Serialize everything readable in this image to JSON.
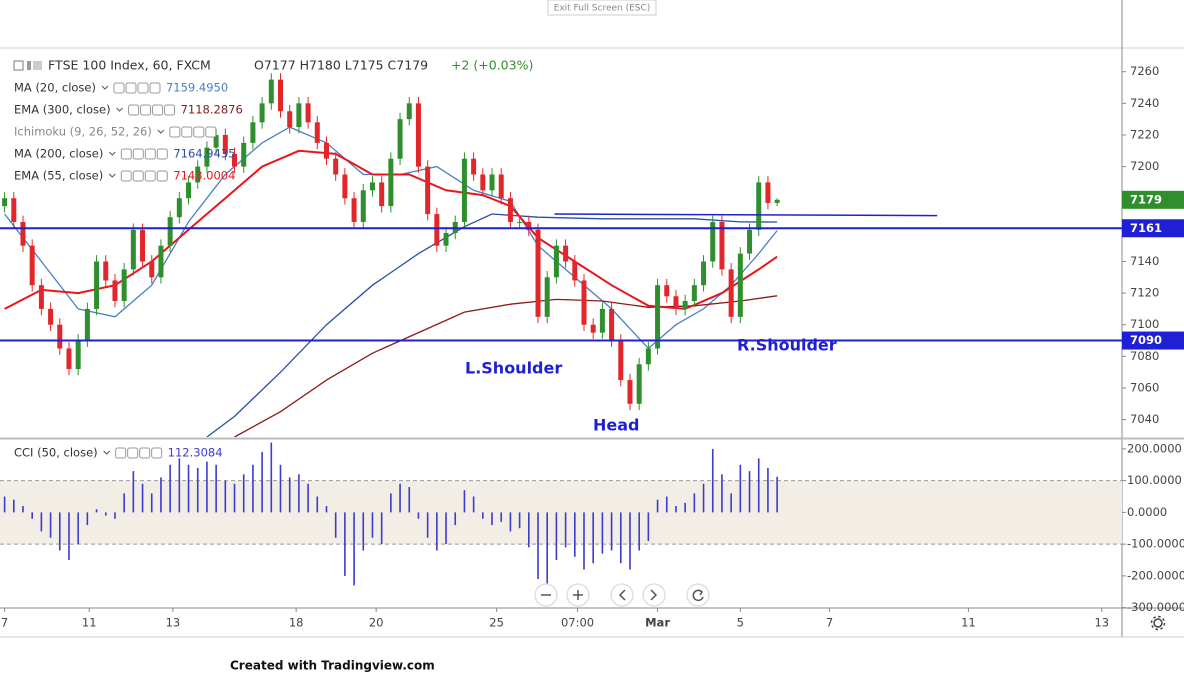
{
  "toolbar_button": "Exit Full Screen (ESC)",
  "footer": "Created with Tradingview.com",
  "chart_data": [
    {
      "type": "candlestick",
      "title": "FTSE 100 Index, 60, FXCM",
      "ohlc_text": "O7177 H7180 L7175 C7179",
      "change_text": "+2 (+0.03%)",
      "xlim": [
        -0.5,
        121.5
      ],
      "xticks": [
        {
          "value": 0,
          "label": "7"
        },
        {
          "value": 9.2,
          "label": "11"
        },
        {
          "value": 18.3,
          "label": "13"
        },
        {
          "value": 31.7,
          "label": "18"
        },
        {
          "value": 40.4,
          "label": "20"
        },
        {
          "value": 53.5,
          "label": "25"
        },
        {
          "value": 62.3,
          "label": "07:00"
        },
        {
          "value": 71.0,
          "label": "Mar"
        },
        {
          "value": 80.0,
          "label": "5"
        },
        {
          "value": 89.7,
          "label": "7"
        },
        {
          "value": 104.8,
          "label": "11"
        },
        {
          "value": 119.3,
          "label": "13"
        }
      ],
      "ylim": [
        7029,
        7275
      ],
      "yticks": [
        7040,
        7060,
        7080,
        7100,
        7120,
        7140,
        7160,
        7180,
        7200,
        7220,
        7240,
        7260
      ],
      "open": [
        7175,
        7180,
        7165,
        7150,
        7125,
        7110,
        7100,
        7085,
        7072,
        7090,
        7110,
        7140,
        7128,
        7115,
        7135,
        7160,
        7140,
        7130,
        7150,
        7168,
        7180,
        7190,
        7200,
        7212,
        7220,
        7208,
        7200,
        7215,
        7228,
        7240,
        7255,
        7235,
        7225,
        7240,
        7228,
        7215,
        7205,
        7195,
        7180,
        7165,
        7185,
        7190,
        7175,
        7205,
        7230,
        7240,
        7200,
        7170,
        7150,
        7158,
        7165,
        7205,
        7195,
        7185,
        7195,
        7180,
        7165,
        7165,
        7160,
        7105,
        7130,
        7150,
        7140,
        7128,
        7100,
        7095,
        7110,
        7090,
        7065,
        7050,
        7075,
        7085,
        7125,
        7118,
        7110,
        7115,
        7125,
        7140,
        7165,
        7135,
        7105,
        7145,
        7160,
        7190,
        7177
      ],
      "high": [
        7184,
        7184,
        7169,
        7154,
        7129,
        7114,
        7104,
        7089,
        7094,
        7114,
        7144,
        7144,
        7132,
        7139,
        7164,
        7164,
        7144,
        7154,
        7172,
        7184,
        7194,
        7204,
        7216,
        7224,
        7224,
        7212,
        7219,
        7232,
        7244,
        7259,
        7259,
        7239,
        7244,
        7244,
        7232,
        7219,
        7209,
        7199,
        7184,
        7189,
        7194,
        7194,
        7209,
        7234,
        7244,
        7244,
        7204,
        7174,
        7162,
        7169,
        7209,
        7209,
        7199,
        7199,
        7199,
        7184,
        7169,
        7169,
        7164,
        7134,
        7154,
        7154,
        7144,
        7132,
        7104,
        7114,
        7114,
        7094,
        7069,
        7079,
        7089,
        7129,
        7129,
        7122,
        7119,
        7129,
        7144,
        7169,
        7169,
        7139,
        7149,
        7164,
        7194,
        7194,
        7180
      ],
      "low": [
        7171,
        7161,
        7146,
        7121,
        7106,
        7096,
        7081,
        7068,
        7068,
        7086,
        7106,
        7124,
        7111,
        7111,
        7131,
        7136,
        7126,
        7126,
        7146,
        7164,
        7176,
        7186,
        7196,
        7208,
        7204,
        7196,
        7196,
        7211,
        7224,
        7236,
        7231,
        7221,
        7221,
        7224,
        7211,
        7201,
        7191,
        7176,
        7161,
        7161,
        7181,
        7171,
        7171,
        7201,
        7226,
        7196,
        7166,
        7146,
        7146,
        7154,
        7161,
        7191,
        7181,
        7181,
        7176,
        7161,
        7161,
        7156,
        7101,
        7101,
        7126,
        7136,
        7124,
        7096,
        7091,
        7091,
        7086,
        7061,
        7046,
        7046,
        7071,
        7081,
        7114,
        7106,
        7106,
        7111,
        7121,
        7136,
        7131,
        7101,
        7101,
        7141,
        7156,
        7173,
        7175
      ],
      "close": [
        7180,
        7165,
        7150,
        7125,
        7110,
        7100,
        7085,
        7072,
        7090,
        7110,
        7140,
        7128,
        7115,
        7135,
        7160,
        7140,
        7130,
        7150,
        7168,
        7180,
        7190,
        7200,
        7212,
        7220,
        7208,
        7200,
        7215,
        7228,
        7240,
        7255,
        7235,
        7225,
        7240,
        7228,
        7215,
        7205,
        7195,
        7180,
        7165,
        7185,
        7190,
        7175,
        7205,
        7230,
        7240,
        7200,
        7170,
        7150,
        7158,
        7165,
        7205,
        7195,
        7185,
        7195,
        7180,
        7165,
        7165,
        7160,
        7105,
        7130,
        7150,
        7140,
        7128,
        7100,
        7095,
        7110,
        7090,
        7065,
        7050,
        7075,
        7085,
        7125,
        7118,
        7110,
        7115,
        7125,
        7140,
        7165,
        7135,
        7105,
        7145,
        7160,
        7190,
        7177,
        7179
      ],
      "up_color": "#2f8f2f",
      "down_color": "#e3262a",
      "series": [
        {
          "name": "MA (20, close)",
          "color": "#4a7fc1",
          "legend_label": "7159.4950",
          "x": [
            0,
            4,
            8,
            12,
            16,
            20,
            24,
            28,
            31,
            35,
            39,
            43,
            47,
            51,
            55,
            58,
            62,
            66,
            70,
            73,
            76,
            79,
            82,
            84
          ],
          "values": [
            7170,
            7140,
            7110,
            7105,
            7125,
            7165,
            7195,
            7215,
            7225,
            7215,
            7195,
            7195,
            7200,
            7185,
            7178,
            7150,
            7130,
            7110,
            7085,
            7100,
            7110,
            7125,
            7145,
            7159.495
          ]
        },
        {
          "name": "EMA (300, close)",
          "color": "#8b1a1a",
          "legend_label": "7118.2876",
          "x": [
            25,
            30,
            35,
            40,
            45,
            50,
            55,
            60,
            65,
            70,
            75,
            80,
            84
          ],
          "values": [
            7029,
            7045,
            7065,
            7082,
            7095,
            7108,
            7113,
            7116,
            7115,
            7111,
            7112,
            7115,
            7118.2876
          ]
        },
        {
          "name": "MA (200, close)",
          "color": "#2a4fa8",
          "legend_label": "7164.9435",
          "x": [
            22,
            25,
            30,
            35,
            40,
            45,
            50,
            53,
            58,
            65,
            75,
            80,
            84
          ],
          "values": [
            7029,
            7042,
            7070,
            7100,
            7125,
            7145,
            7162,
            7170,
            7168,
            7167,
            7167,
            7165,
            7164.9435
          ]
        },
        {
          "name": "EMA (55, close)",
          "color": "#e8161b",
          "legend_label": "7143.0004",
          "x": [
            0,
            4,
            8,
            12,
            16,
            20,
            24,
            28,
            32,
            36,
            40,
            44,
            48,
            52,
            55,
            58,
            62,
            66,
            70,
            74,
            78,
            82,
            84
          ],
          "values": [
            7110,
            7122,
            7120,
            7125,
            7140,
            7160,
            7180,
            7200,
            7210,
            7208,
            7195,
            7195,
            7185,
            7182,
            7175,
            7155,
            7140,
            7125,
            7112,
            7110,
            7120,
            7135,
            7143.0004
          ]
        }
      ],
      "hidden_studies": [
        "Ichimoku (9, 26, 52, 26)"
      ],
      "hlines": [
        {
          "value": 7161,
          "color": "#1f1fd6"
        },
        {
          "value": 7090,
          "color": "#1f1fd6"
        }
      ],
      "trend_line": {
        "color": "#1f1fd6",
        "x": [
          59.8,
          101.4
        ],
        "values": [
          7170,
          7169
        ]
      },
      "annotations": [
        "L.Shoulder",
        "Head",
        "R.Shoulder"
      ],
      "annotation_color": "#1f1fd6"
    },
    {
      "type": "bar",
      "title": "CCI (50, close)",
      "xlim": [
        -0.5,
        121.5
      ],
      "ylim": [
        -298,
        228
      ],
      "yticks": [
        {
          "value": 200,
          "label": "200.0000"
        },
        {
          "value": 100,
          "label": "100.0000"
        },
        {
          "value": 0,
          "label": "0.0000"
        },
        {
          "value": -100,
          "label": "-100.0000"
        },
        {
          "value": -200,
          "label": "-200.0000"
        },
        {
          "value": -300,
          "label": "-300.0000"
        }
      ],
      "values": [
        50,
        40,
        20,
        -20,
        -60,
        -80,
        -120,
        -150,
        -100,
        -40,
        10,
        -10,
        -20,
        60,
        130,
        90,
        60,
        110,
        150,
        170,
        150,
        140,
        160,
        150,
        100,
        90,
        120,
        150,
        190,
        220,
        150,
        110,
        120,
        90,
        50,
        20,
        -80,
        -200,
        -230,
        -120,
        -80,
        -100,
        60,
        90,
        80,
        -20,
        -80,
        -120,
        -100,
        -40,
        70,
        50,
        -20,
        -40,
        -30,
        -60,
        -50,
        -110,
        -210,
        -230,
        -150,
        -110,
        -140,
        -180,
        -160,
        -130,
        -120,
        -160,
        -180,
        -120,
        -90,
        40,
        50,
        20,
        30,
        60,
        90,
        200,
        120,
        60,
        150,
        130,
        170,
        140,
        112.3084
      ],
      "color": "#3b3bd1",
      "band": [
        -100,
        100
      ],
      "band_color": "#f3eee5"
    }
  ]
}
